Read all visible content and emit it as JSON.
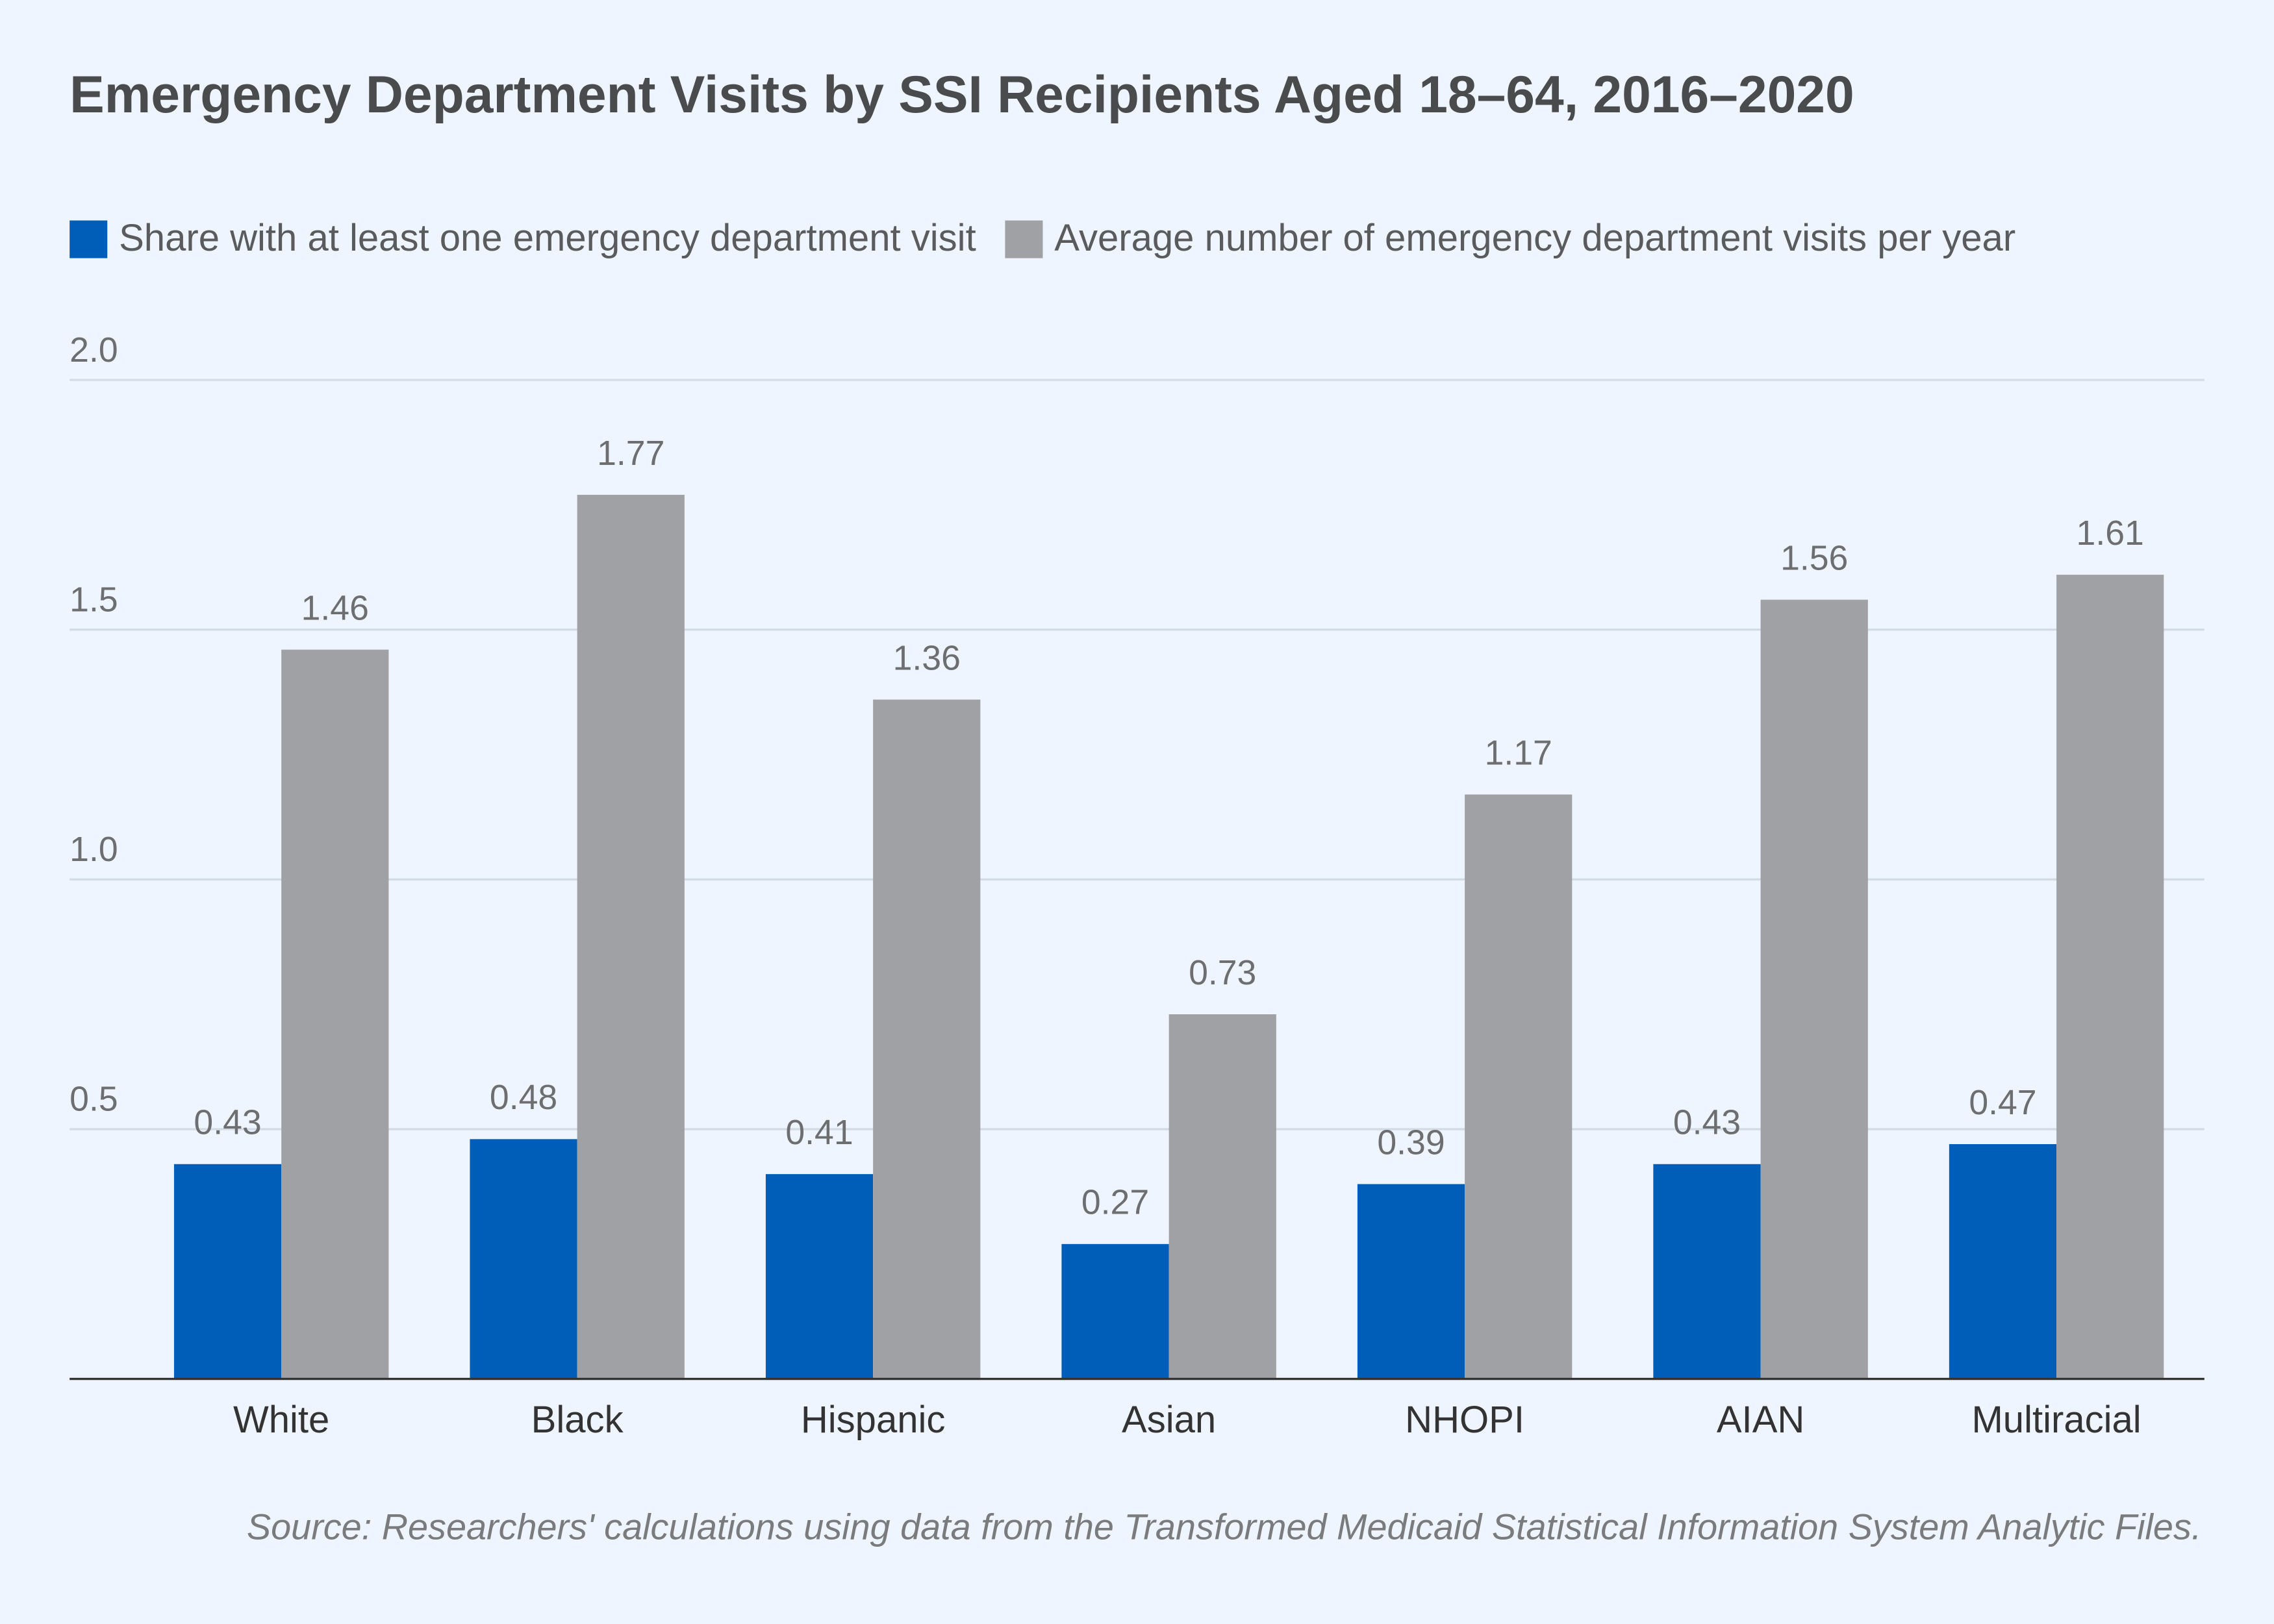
{
  "chart_data": {
    "type": "bar",
    "title": "Emergency Department Visits by SSI Recipients Aged 18–64, 2016–2020",
    "source": "Source: Researchers' calculations using data from the Transformed Medicaid Statistical Information System Analytic Files.",
    "categories": [
      "White",
      "Black",
      "Hispanic",
      "Asian",
      "NHOPI",
      "AIAN",
      "Multiracial"
    ],
    "series": [
      {
        "name": "Share with at least one emergency department visit",
        "color": "#005eb8",
        "values": [
          0.43,
          0.48,
          0.41,
          0.27,
          0.39,
          0.43,
          0.47
        ]
      },
      {
        "name": "Average number of emergency department visits per year",
        "color": "#a0a1a4",
        "values": [
          1.46,
          1.77,
          1.36,
          0.73,
          1.17,
          1.56,
          1.61
        ]
      }
    ],
    "ylim": [
      0,
      2
    ],
    "yticks": [
      0.5,
      {
        "value": 1,
        "label": "1.0"
      },
      1.5,
      {
        "value": 2,
        "label": "2.0"
      }
    ],
    "grid": true
  }
}
